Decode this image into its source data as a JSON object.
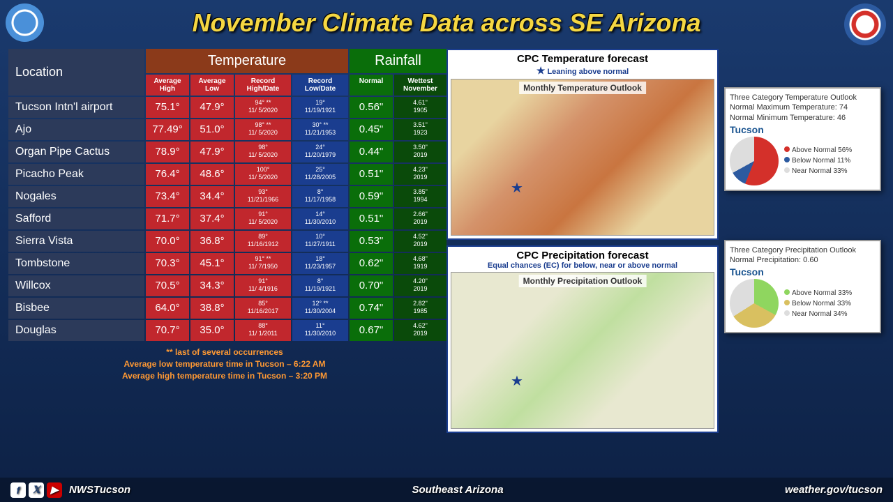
{
  "title": "November Climate Data across SE Arizona",
  "table": {
    "headers": {
      "location": "Location",
      "temperature": "Temperature",
      "rainfall": "Rainfall"
    },
    "subheaders": {
      "avgHigh": "Average High",
      "avgLow": "Average Low",
      "recHigh": "Record High/Date",
      "recLow": "Record Low/Date",
      "normal": "Normal",
      "wettest": "Wettest November"
    },
    "rows": [
      {
        "loc": "Tucson Intn'l airport",
        "ah": "75.1°",
        "al": "47.9°",
        "rh": "94° **",
        "rhd": "11/ 5/2020",
        "rl": "19°",
        "rld": "11/19/1921",
        "nm": "0.56\"",
        "wn": "4.61\"",
        "wnd": "1905"
      },
      {
        "loc": "Ajo",
        "ah": "77.49°",
        "al": "51.0°",
        "rh": "98° **",
        "rhd": "11/ 5/2020",
        "rl": "30° **",
        "rld": "11/21/1953",
        "nm": "0.45\"",
        "wn": "3.51\"",
        "wnd": "1923"
      },
      {
        "loc": "Organ Pipe Cactus",
        "ah": "78.9°",
        "al": "47.9°",
        "rh": "98°",
        "rhd": "11/ 5/2020",
        "rl": "24°",
        "rld": "11/20/1979",
        "nm": "0.44\"",
        "wn": "3.50\"",
        "wnd": "2019"
      },
      {
        "loc": "Picacho Peak",
        "ah": "76.4°",
        "al": "48.6°",
        "rh": "100°",
        "rhd": "11/ 5/2020",
        "rl": "25°",
        "rld": "11/28/2005",
        "nm": "0.51\"",
        "wn": "4.23\"",
        "wnd": "2019"
      },
      {
        "loc": "Nogales",
        "ah": "73.4°",
        "al": "34.4°",
        "rh": "93°",
        "rhd": "11/21/1966",
        "rl": "8°",
        "rld": "11/17/1958",
        "nm": "0.59\"",
        "wn": "3.85\"",
        "wnd": "1994"
      },
      {
        "loc": "Safford",
        "ah": "71.7°",
        "al": "37.4°",
        "rh": "91°",
        "rhd": "11/ 5/2020",
        "rl": "14°",
        "rld": "11/30/2010",
        "nm": "0.51\"",
        "wn": "2.66\"",
        "wnd": "2019"
      },
      {
        "loc": "Sierra Vista",
        "ah": "70.0°",
        "al": "36.8°",
        "rh": "89°",
        "rhd": "11/16/1912",
        "rl": "10°",
        "rld": "11/27/1911",
        "nm": "0.53\"",
        "wn": "4.52\"",
        "wnd": "2019"
      },
      {
        "loc": "Tombstone",
        "ah": "70.3°",
        "al": "45.1°",
        "rh": "91° **",
        "rhd": "11/ 7/1950",
        "rl": "18°",
        "rld": "11/23/1957",
        "nm": "0.62\"",
        "wn": "4.68\"",
        "wnd": "1919"
      },
      {
        "loc": "Willcox",
        "ah": "70.5°",
        "al": "34.3°",
        "rh": "91°",
        "rhd": "11/ 4/1916",
        "rl": "8°",
        "rld": "11/19/1921",
        "nm": "0.70\"",
        "wn": "4.20\"",
        "wnd": "2019"
      },
      {
        "loc": "Bisbee",
        "ah": "64.0°",
        "al": "38.8°",
        "rh": "85°",
        "rhd": "11/16/2017",
        "rl": "12° **",
        "rld": "11/30/2004",
        "nm": "0.74\"",
        "wn": "2.82\"",
        "wnd": "1985"
      },
      {
        "loc": "Douglas",
        "ah": "70.7°",
        "al": "35.0°",
        "rh": "88°",
        "rhd": "11/ 1/2011",
        "rl": "11°",
        "rld": "11/30/2010",
        "nm": "0.67\"",
        "wn": "4.62\"",
        "wnd": "2019"
      }
    ]
  },
  "footnote": {
    "l1": "** last of several occurrences",
    "l2": "Average low temperature time in Tucson – 6:22 AM",
    "l3": "Average high temperature time in Tucson – 3:20 PM"
  },
  "tempForecast": {
    "title": "CPC Temperature forecast",
    "sub": "Leaning above normal",
    "mapTitle": "Monthly Temperature Outlook"
  },
  "precipForecast": {
    "title": "CPC Precipitation forecast",
    "sub": "Equal chances (EC) for below, near or above normal",
    "mapTitle": "Monthly Precipitation Outlook"
  },
  "tempPie": {
    "head1": "Three Category Temperature Outlook",
    "head2": "Normal Maximum Temperature: 74",
    "head3": "Normal Minimum Temperature: 46",
    "loc": "Tucson",
    "above": "56%",
    "below": "11%",
    "near": "33%"
  },
  "precipPie": {
    "head1": "Three Category Precipitation Outlook",
    "head2": "Normal Precipitation: 0.60",
    "loc": "Tucson",
    "above": "33%",
    "below": "33%",
    "near": "34%"
  },
  "footer": {
    "handle": "NWSTucson",
    "region": "Southeast Arizona",
    "url": "weather.gov/tucson"
  }
}
